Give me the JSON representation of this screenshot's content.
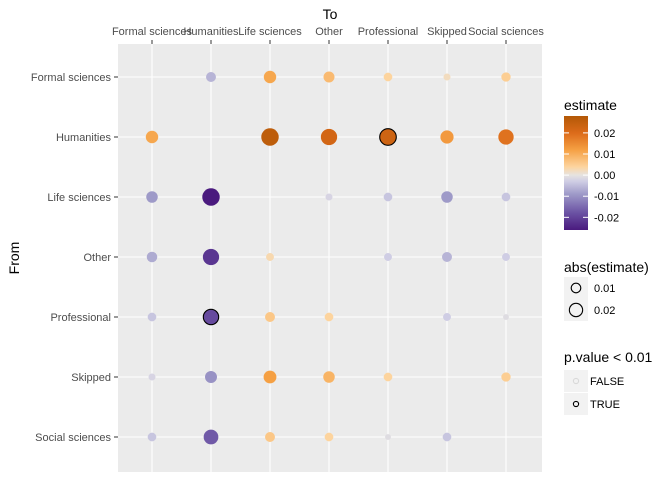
{
  "chart_data": {
    "type": "scatter",
    "xlabel": "To",
    "ylabel": "From",
    "x_categories": [
      "Formal sciences",
      "Humanities",
      "Life sciences",
      "Other",
      "Professional",
      "Skipped",
      "Social sciences"
    ],
    "y_categories": [
      "Formal sciences",
      "Humanities",
      "Life sciences",
      "Other",
      "Professional",
      "Skipped",
      "Social sciences"
    ],
    "x_axis_position": "top",
    "grid": true,
    "legend_position": "right",
    "points": [
      {
        "from": "Formal sciences",
        "to": "Humanities",
        "estimate": -0.006,
        "significant": false
      },
      {
        "from": "Formal sciences",
        "to": "Life sciences",
        "estimate": 0.011,
        "significant": false
      },
      {
        "from": "Formal sciences",
        "to": "Other",
        "estimate": 0.008,
        "significant": false
      },
      {
        "from": "Formal sciences",
        "to": "Professional",
        "estimate": 0.004,
        "significant": false
      },
      {
        "from": "Formal sciences",
        "to": "Skipped",
        "estimate": 0.002,
        "significant": false
      },
      {
        "from": "Formal sciences",
        "to": "Social sciences",
        "estimate": 0.005,
        "significant": false
      },
      {
        "from": "Humanities",
        "to": "Formal sciences",
        "estimate": 0.011,
        "significant": false
      },
      {
        "from": "Humanities",
        "to": "Life sciences",
        "estimate": 0.026,
        "significant": false
      },
      {
        "from": "Humanities",
        "to": "Other",
        "estimate": 0.022,
        "significant": false
      },
      {
        "from": "Humanities",
        "to": "Professional",
        "estimate": 0.023,
        "significant": true
      },
      {
        "from": "Humanities",
        "to": "Skipped",
        "estimate": 0.013,
        "significant": false
      },
      {
        "from": "Humanities",
        "to": "Social sciences",
        "estimate": 0.019,
        "significant": false
      },
      {
        "from": "Life sciences",
        "to": "Formal sciences",
        "estimate": -0.009,
        "significant": false
      },
      {
        "from": "Life sciences",
        "to": "Humanities",
        "estimate": -0.026,
        "significant": false
      },
      {
        "from": "Life sciences",
        "to": "Other",
        "estimate": -0.002,
        "significant": false
      },
      {
        "from": "Life sciences",
        "to": "Professional",
        "estimate": -0.004,
        "significant": false
      },
      {
        "from": "Life sciences",
        "to": "Skipped",
        "estimate": -0.009,
        "significant": false
      },
      {
        "from": "Life sciences",
        "to": "Social sciences",
        "estimate": -0.004,
        "significant": false
      },
      {
        "from": "Other",
        "to": "Formal sciences",
        "estimate": -0.007,
        "significant": false
      },
      {
        "from": "Other",
        "to": "Humanities",
        "estimate": -0.022,
        "significant": false
      },
      {
        "from": "Other",
        "to": "Life sciences",
        "estimate": 0.003,
        "significant": false
      },
      {
        "from": "Other",
        "to": "Professional",
        "estimate": -0.003,
        "significant": false
      },
      {
        "from": "Other",
        "to": "Skipped",
        "estimate": -0.006,
        "significant": false
      },
      {
        "from": "Other",
        "to": "Social sciences",
        "estimate": -0.003,
        "significant": false
      },
      {
        "from": "Professional",
        "to": "Formal sciences",
        "estimate": -0.004,
        "significant": false
      },
      {
        "from": "Professional",
        "to": "Humanities",
        "estimate": -0.019,
        "significant": true
      },
      {
        "from": "Professional",
        "to": "Life sciences",
        "estimate": 0.006,
        "significant": false
      },
      {
        "from": "Professional",
        "to": "Other",
        "estimate": 0.004,
        "significant": false
      },
      {
        "from": "Professional",
        "to": "Skipped",
        "estimate": -0.003,
        "significant": false
      },
      {
        "from": "Professional",
        "to": "Social sciences",
        "estimate": -0.001,
        "significant": false
      },
      {
        "from": "Skipped",
        "to": "Formal sciences",
        "estimate": -0.002,
        "significant": false
      },
      {
        "from": "Skipped",
        "to": "Humanities",
        "estimate": -0.01,
        "significant": false
      },
      {
        "from": "Skipped",
        "to": "Life sciences",
        "estimate": 0.012,
        "significant": false
      },
      {
        "from": "Skipped",
        "to": "Other",
        "estimate": 0.009,
        "significant": false
      },
      {
        "from": "Skipped",
        "to": "Professional",
        "estimate": 0.004,
        "significant": false
      },
      {
        "from": "Skipped",
        "to": "Social sciences",
        "estimate": 0.005,
        "significant": false
      },
      {
        "from": "Social sciences",
        "to": "Formal sciences",
        "estimate": -0.004,
        "significant": false
      },
      {
        "from": "Social sciences",
        "to": "Humanities",
        "estimate": -0.017,
        "significant": false
      },
      {
        "from": "Social sciences",
        "to": "Life sciences",
        "estimate": 0.006,
        "significant": false
      },
      {
        "from": "Social sciences",
        "to": "Other",
        "estimate": 0.004,
        "significant": false
      },
      {
        "from": "Social sciences",
        "to": "Professional",
        "estimate": -0.001,
        "significant": false
      },
      {
        "from": "Social sciences",
        "to": "Skipped",
        "estimate": -0.004,
        "significant": false
      }
    ],
    "color_scale": {
      "title": "estimate",
      "domain": [
        -0.026,
        0.028
      ],
      "breaks": [
        0.02,
        0.01,
        0.0,
        -0.01,
        -0.02
      ],
      "break_labels": [
        "0.02",
        "0.01",
        "0.00",
        "-0.01",
        "-0.02"
      ],
      "stops": [
        {
          "value": -0.026,
          "color": "#4a1a7e"
        },
        {
          "value": -0.018,
          "color": "#6a51a3"
        },
        {
          "value": -0.009,
          "color": "#9e9ac8"
        },
        {
          "value": -0.003,
          "color": "#cfcde4"
        },
        {
          "value": 0.0,
          "color": "#e6e3e0"
        },
        {
          "value": 0.004,
          "color": "#fdd49e"
        },
        {
          "value": 0.012,
          "color": "#f5a043"
        },
        {
          "value": 0.02,
          "color": "#dc6b1a"
        },
        {
          "value": 0.028,
          "color": "#b35806"
        }
      ]
    },
    "size_scale": {
      "title": "abs(estimate)",
      "entries": [
        {
          "label": "0.01",
          "value": 0.01
        },
        {
          "label": "0.02",
          "value": 0.02
        }
      ]
    },
    "significance_legend": {
      "title": "p.value < 0.01",
      "entries": [
        {
          "label": "FALSE",
          "significant": false
        },
        {
          "label": "TRUE",
          "significant": true
        }
      ]
    },
    "colors": {
      "panel_background": "#ebebeb",
      "grid_line": "#ffffff",
      "significant_outline": "#000000"
    }
  }
}
